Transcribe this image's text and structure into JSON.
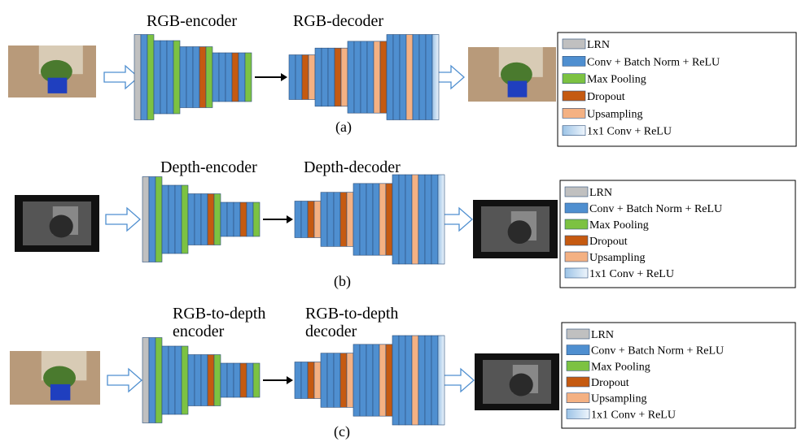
{
  "panels": [
    {
      "encoder_label": [
        "RGB-encoder"
      ],
      "decoder_label": [
        "RGB-decoder"
      ],
      "caption": "(a)",
      "legend": [
        "LRN",
        "Conv + Batch Norm + ReLU",
        "Max Pooling",
        "Dropout",
        "Upsampling",
        "1x1 Conv + ReLU"
      ]
    },
    {
      "encoder_label": [
        "Depth-encoder"
      ],
      "decoder_label": [
        "Depth-decoder"
      ],
      "caption": "(b)",
      "legend": [
        "LRN",
        "Conv + Batch Norm + ReLU",
        "Max Pooling",
        "Dropout",
        "Upsampling",
        "1x1 Conv + ReLU"
      ]
    },
    {
      "encoder_label": [
        "RGB-to-depth",
        "encoder"
      ],
      "decoder_label": [
        "RGB-to-depth",
        "decoder"
      ],
      "caption": "(c)",
      "legend": [
        "LRN",
        "Conv + Batch Norm + ReLU",
        "Max Pooling",
        "Dropout",
        "Upsampling",
        "1x1 Conv + ReLU"
      ]
    }
  ]
}
